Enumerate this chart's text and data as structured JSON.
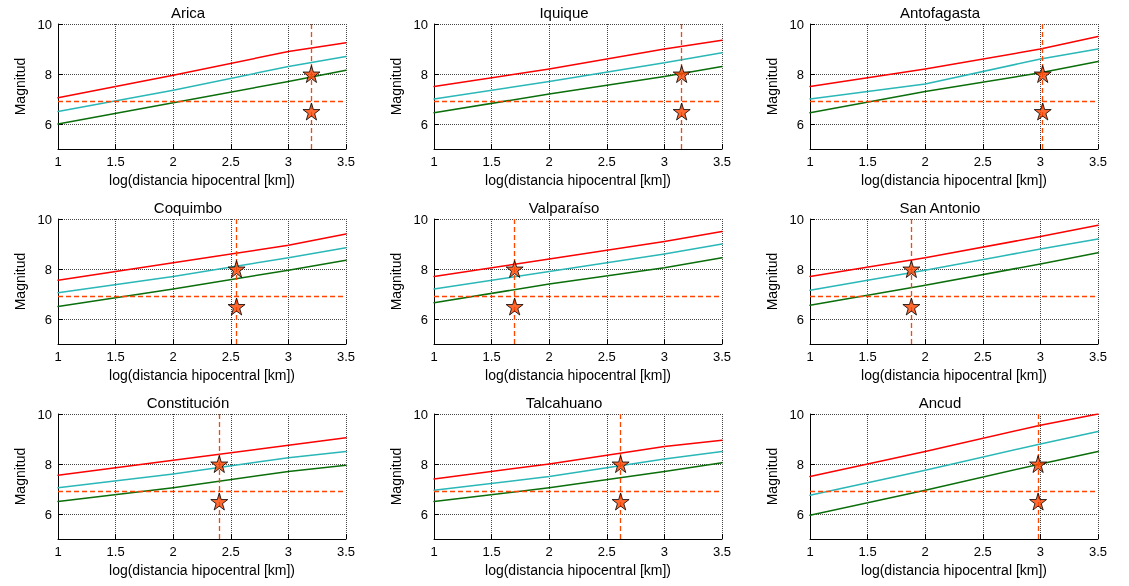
{
  "chart_data": [
    {
      "type": "line",
      "title": "Arica",
      "xlabel": "log(distancia hipocentral [km])",
      "ylabel": "Magnitud",
      "xlim": [
        1,
        3.5
      ],
      "ylim": [
        5,
        10
      ],
      "xticks": [
        1,
        1.5,
        2,
        2.5,
        3,
        3.5
      ],
      "yticks": [
        6,
        8,
        10
      ],
      "grid": true,
      "series": [
        {
          "color": "#ff0000",
          "x": [
            1,
            2,
            3,
            3.5
          ],
          "values": [
            7.05,
            7.95,
            8.9,
            9.25
          ]
        },
        {
          "color": "#2ab7b7",
          "x": [
            1,
            2,
            3,
            3.5
          ],
          "values": [
            6.5,
            7.35,
            8.3,
            8.7
          ]
        },
        {
          "color": "#0a6e0a",
          "x": [
            1,
            2,
            3,
            3.5
          ],
          "values": [
            6.0,
            6.85,
            7.7,
            8.15
          ]
        },
        {
          "type": "scatter",
          "marker": "star",
          "color": "#ff4500",
          "x": [
            3.2,
            3.2
          ],
          "values": [
            8,
            6.5
          ]
        }
      ],
      "ref_lines": [
        {
          "axis": "y",
          "value": 6.9,
          "color": "#ff4500",
          "line_style": "dashed"
        },
        {
          "axis": "x",
          "value": 3.2,
          "color": "#ff4500",
          "line_style": "dashed"
        }
      ]
    },
    {
      "type": "line",
      "title": "Iquique",
      "xlabel": "log(distancia hipocentral [km])",
      "ylabel": "Magnitud",
      "xlim": [
        1,
        3.5
      ],
      "ylim": [
        5,
        10
      ],
      "xticks": [
        1,
        1.5,
        2,
        2.5,
        3,
        3.5
      ],
      "yticks": [
        6,
        8,
        10
      ],
      "grid": true,
      "series": [
        {
          "color": "#ff0000",
          "x": [
            1,
            2,
            3,
            3.5
          ],
          "values": [
            7.5,
            8.2,
            9.0,
            9.35
          ]
        },
        {
          "color": "#2ab7b7",
          "x": [
            1,
            2,
            3,
            3.5
          ],
          "values": [
            7.0,
            7.7,
            8.45,
            8.85
          ]
        },
        {
          "color": "#0a6e0a",
          "x": [
            1,
            2,
            3,
            3.5
          ],
          "values": [
            6.45,
            7.2,
            7.9,
            8.3
          ]
        },
        {
          "type": "scatter",
          "marker": "star",
          "color": "#ff4500",
          "x": [
            3.15,
            3.15
          ],
          "values": [
            8,
            6.5
          ]
        }
      ],
      "ref_lines": [
        {
          "axis": "y",
          "value": 6.9,
          "color": "#ff4500",
          "line_style": "dashed"
        },
        {
          "axis": "x",
          "value": 3.15,
          "color": "#ff4500",
          "line_style": "dashed"
        }
      ]
    },
    {
      "type": "line",
      "title": "Antofagasta",
      "xlabel": "log(distancia hipocentral [km])",
      "ylabel": "Magnitud",
      "xlim": [
        1,
        3.5
      ],
      "ylim": [
        5,
        10
      ],
      "xticks": [
        1,
        1.5,
        2,
        2.5,
        3,
        3.5
      ],
      "yticks": [
        6,
        8,
        10
      ],
      "grid": true,
      "series": [
        {
          "color": "#ff0000",
          "x": [
            1,
            2,
            3,
            3.5
          ],
          "values": [
            7.5,
            8.2,
            9.0,
            9.5
          ]
        },
        {
          "color": "#2ab7b7",
          "x": [
            1,
            2,
            3,
            3.5
          ],
          "values": [
            7.0,
            7.6,
            8.6,
            9.0
          ]
        },
        {
          "color": "#0a6e0a",
          "x": [
            1,
            2,
            3,
            3.5
          ],
          "values": [
            6.45,
            7.3,
            8.05,
            8.5
          ]
        },
        {
          "type": "scatter",
          "marker": "star",
          "color": "#ff4500",
          "x": [
            3.02,
            3.02
          ],
          "values": [
            8,
            6.5
          ]
        }
      ],
      "ref_lines": [
        {
          "axis": "y",
          "value": 6.9,
          "color": "#ff4500",
          "line_style": "dashed"
        },
        {
          "axis": "x",
          "value": 3.02,
          "color": "#ff4500",
          "line_style": "dashed"
        }
      ]
    },
    {
      "type": "line",
      "title": "Coquimbo",
      "xlabel": "log(distancia hipocentral [km])",
      "ylabel": "Magnitud",
      "xlim": [
        1,
        3.5
      ],
      "ylim": [
        5,
        10
      ],
      "xticks": [
        1,
        1.5,
        2,
        2.5,
        3,
        3.5
      ],
      "yticks": [
        6,
        8,
        10
      ],
      "grid": true,
      "series": [
        {
          "color": "#ff0000",
          "x": [
            1,
            2,
            3,
            3.5
          ],
          "values": [
            7.55,
            8.25,
            8.95,
            9.4
          ]
        },
        {
          "color": "#2ab7b7",
          "x": [
            1,
            2,
            3,
            3.5
          ],
          "values": [
            7.05,
            7.7,
            8.45,
            8.85
          ]
        },
        {
          "color": "#0a6e0a",
          "x": [
            1,
            2,
            3,
            3.5
          ],
          "values": [
            6.5,
            7.2,
            7.95,
            8.35
          ]
        },
        {
          "type": "scatter",
          "marker": "star",
          "color": "#ff4500",
          "x": [
            2.55,
            2.55
          ],
          "values": [
            8,
            6.5
          ]
        }
      ],
      "ref_lines": [
        {
          "axis": "y",
          "value": 6.9,
          "color": "#ff4500",
          "line_style": "dashed"
        },
        {
          "axis": "x",
          "value": 2.55,
          "color": "#ff4500",
          "line_style": "dashed"
        }
      ]
    },
    {
      "type": "line",
      "title": "Valparaíso",
      "xlabel": "log(distancia hipocentral [km])",
      "ylabel": "Magnitud",
      "xlim": [
        1,
        3.5
      ],
      "ylim": [
        5,
        10
      ],
      "xticks": [
        1,
        1.5,
        2,
        2.5,
        3,
        3.5
      ],
      "yticks": [
        6,
        8,
        10
      ],
      "grid": true,
      "series": [
        {
          "color": "#ff0000",
          "x": [
            1,
            2,
            3,
            3.5
          ],
          "values": [
            7.7,
            8.4,
            9.1,
            9.5
          ]
        },
        {
          "color": "#2ab7b7",
          "x": [
            1,
            2,
            3,
            3.5
          ],
          "values": [
            7.2,
            7.9,
            8.6,
            9.0
          ]
        },
        {
          "color": "#0a6e0a",
          "x": [
            1,
            2,
            3,
            3.5
          ],
          "values": [
            6.65,
            7.4,
            8.05,
            8.45
          ]
        },
        {
          "type": "scatter",
          "marker": "star",
          "color": "#ff4500",
          "x": [
            1.7,
            1.7
          ],
          "values": [
            8,
            6.5
          ]
        }
      ],
      "ref_lines": [
        {
          "axis": "y",
          "value": 6.9,
          "color": "#ff4500",
          "line_style": "dashed"
        },
        {
          "axis": "x",
          "value": 1.7,
          "color": "#ff4500",
          "line_style": "dashed"
        }
      ]
    },
    {
      "type": "line",
      "title": "San Antonio",
      "xlabel": "log(distancia hipocentral [km])",
      "ylabel": "Magnitud",
      "xlim": [
        1,
        3.5
      ],
      "ylim": [
        5,
        10
      ],
      "xticks": [
        1,
        1.5,
        2,
        2.5,
        3,
        3.5
      ],
      "yticks": [
        6,
        8,
        10
      ],
      "grid": true,
      "series": [
        {
          "color": "#ff0000",
          "x": [
            1,
            2,
            3,
            3.5
          ],
          "values": [
            7.7,
            8.45,
            9.3,
            9.75
          ]
        },
        {
          "color": "#2ab7b7",
          "x": [
            1,
            2,
            3,
            3.5
          ],
          "values": [
            7.15,
            7.95,
            8.8,
            9.2
          ]
        },
        {
          "color": "#0a6e0a",
          "x": [
            1,
            2,
            3,
            3.5
          ],
          "values": [
            6.55,
            7.35,
            8.2,
            8.65
          ]
        },
        {
          "type": "scatter",
          "marker": "star",
          "color": "#ff4500",
          "x": [
            1.88,
            1.88
          ],
          "values": [
            8,
            6.5
          ]
        }
      ],
      "ref_lines": [
        {
          "axis": "y",
          "value": 6.9,
          "color": "#ff4500",
          "line_style": "dashed"
        },
        {
          "axis": "x",
          "value": 1.88,
          "color": "#ff4500",
          "line_style": "dashed"
        }
      ]
    },
    {
      "type": "line",
      "title": "Constitución",
      "xlabel": "log(distancia hipocentral [km])",
      "ylabel": "Magnitud",
      "xlim": [
        1,
        3.5
      ],
      "ylim": [
        5,
        10
      ],
      "xticks": [
        1,
        1.5,
        2,
        2.5,
        3,
        3.5
      ],
      "yticks": [
        6,
        8,
        10
      ],
      "grid": true,
      "series": [
        {
          "color": "#ff0000",
          "x": [
            1,
            2,
            3,
            3.5
          ],
          "values": [
            7.55,
            8.15,
            8.75,
            9.05
          ]
        },
        {
          "color": "#2ab7b7",
          "x": [
            1,
            2,
            3,
            3.5
          ],
          "values": [
            7.05,
            7.6,
            8.25,
            8.5
          ]
        },
        {
          "color": "#0a6e0a",
          "x": [
            1,
            2,
            3,
            3.5
          ],
          "values": [
            6.5,
            7.05,
            7.7,
            7.95
          ]
        },
        {
          "type": "scatter",
          "marker": "star",
          "color": "#ff4500",
          "x": [
            2.4,
            2.4
          ],
          "values": [
            8,
            6.5
          ]
        }
      ],
      "ref_lines": [
        {
          "axis": "y",
          "value": 6.9,
          "color": "#ff4500",
          "line_style": "dashed"
        },
        {
          "axis": "x",
          "value": 2.4,
          "color": "#ff4500",
          "line_style": "dashed"
        }
      ]
    },
    {
      "type": "line",
      "title": "Talcahuano",
      "xlabel": "log(distancia hipocentral [km])",
      "ylabel": "Magnitud",
      "xlim": [
        1,
        3.5
      ],
      "ylim": [
        5,
        10
      ],
      "xticks": [
        1,
        1.5,
        2,
        2.5,
        3,
        3.5
      ],
      "yticks": [
        6,
        8,
        10
      ],
      "grid": true,
      "series": [
        {
          "color": "#ff0000",
          "x": [
            1,
            2,
            3,
            3.5
          ],
          "values": [
            7.4,
            8.0,
            8.7,
            8.95
          ]
        },
        {
          "color": "#2ab7b7",
          "x": [
            1,
            2,
            3,
            3.5
          ],
          "values": [
            6.95,
            7.5,
            8.2,
            8.5
          ]
        },
        {
          "color": "#0a6e0a",
          "x": [
            1,
            2,
            3,
            3.5
          ],
          "values": [
            6.5,
            7.05,
            7.7,
            8.05
          ]
        },
        {
          "type": "scatter",
          "marker": "star",
          "color": "#ff4500",
          "x": [
            2.62,
            2.62
          ],
          "values": [
            8,
            6.5
          ]
        }
      ],
      "ref_lines": [
        {
          "axis": "y",
          "value": 6.9,
          "color": "#ff4500",
          "line_style": "dashed"
        },
        {
          "axis": "x",
          "value": 2.62,
          "color": "#ff4500",
          "line_style": "dashed"
        }
      ]
    },
    {
      "type": "line",
      "title": "Ancud",
      "xlabel": "log(distancia hipocentral [km])",
      "ylabel": "Magnitud",
      "xlim": [
        1,
        3.5
      ],
      "ylim": [
        5,
        10
      ],
      "xticks": [
        1,
        1.5,
        2,
        2.5,
        3,
        3.5
      ],
      "yticks": [
        6,
        8,
        10
      ],
      "grid": true,
      "series": [
        {
          "color": "#ff0000",
          "x": [
            1,
            2,
            3,
            3.5
          ],
          "values": [
            7.5,
            8.5,
            9.55,
            10.0
          ]
        },
        {
          "color": "#2ab7b7",
          "x": [
            1,
            2,
            3,
            3.5
          ],
          "values": [
            6.75,
            7.75,
            8.8,
            9.3
          ]
        },
        {
          "color": "#0a6e0a",
          "x": [
            1,
            2,
            3,
            3.5
          ],
          "values": [
            5.95,
            6.95,
            8.0,
            8.5
          ]
        },
        {
          "type": "scatter",
          "marker": "star",
          "color": "#ff4500",
          "x": [
            2.98,
            2.98
          ],
          "values": [
            8,
            6.5
          ]
        }
      ],
      "ref_lines": [
        {
          "axis": "y",
          "value": 6.9,
          "color": "#ff4500",
          "line_style": "dashed"
        },
        {
          "axis": "x",
          "value": 2.98,
          "color": "#ff4500",
          "line_style": "dashed"
        }
      ]
    }
  ]
}
